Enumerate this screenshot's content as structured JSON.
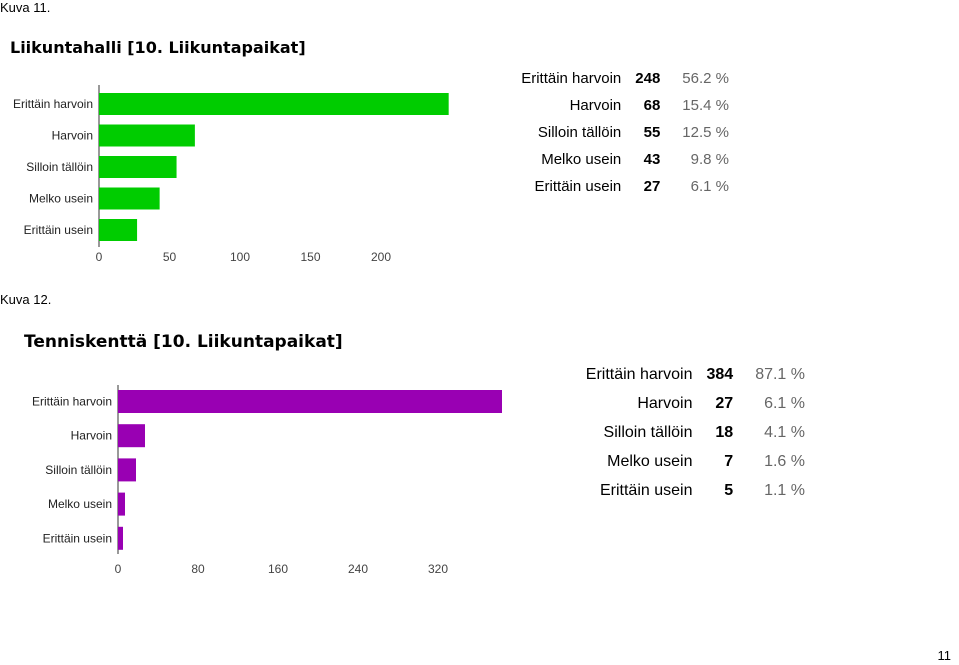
{
  "captions": [
    "Kuva 11.",
    "Kuva 12."
  ],
  "page_number": "11",
  "chart_data": [
    {
      "type": "bar",
      "orientation": "horizontal",
      "title": "Liikuntahalli [10. Liikuntapaikat]",
      "categories": [
        "Erittäin harvoin",
        "Harvoin",
        "Silloin tällöin",
        "Melko usein",
        "Erittäin usein"
      ],
      "values": [
        248,
        68,
        55,
        43,
        27
      ],
      "percentages": [
        "56.2 %",
        "15.4 %",
        "12.5 %",
        "9.8 %",
        "6.1 %"
      ],
      "xticks": [
        0,
        50,
        100,
        150,
        200
      ],
      "xlim": [
        0,
        250
      ],
      "color": "#00cc00"
    },
    {
      "type": "bar",
      "orientation": "horizontal",
      "title": "Tenniskenttä [10. Liikuntapaikat]",
      "categories": [
        "Erittäin harvoin",
        "Harvoin",
        "Silloin tällöin",
        "Melko usein",
        "Erittäin usein"
      ],
      "values": [
        384,
        27,
        18,
        7,
        5
      ],
      "percentages": [
        "87.1 %",
        "6.1 %",
        "4.1 %",
        "1.6 %",
        "1.1 %"
      ],
      "xticks": [
        0,
        80,
        160,
        240,
        320
      ],
      "xlim": [
        0,
        400
      ],
      "color": "#9900b3"
    }
  ]
}
